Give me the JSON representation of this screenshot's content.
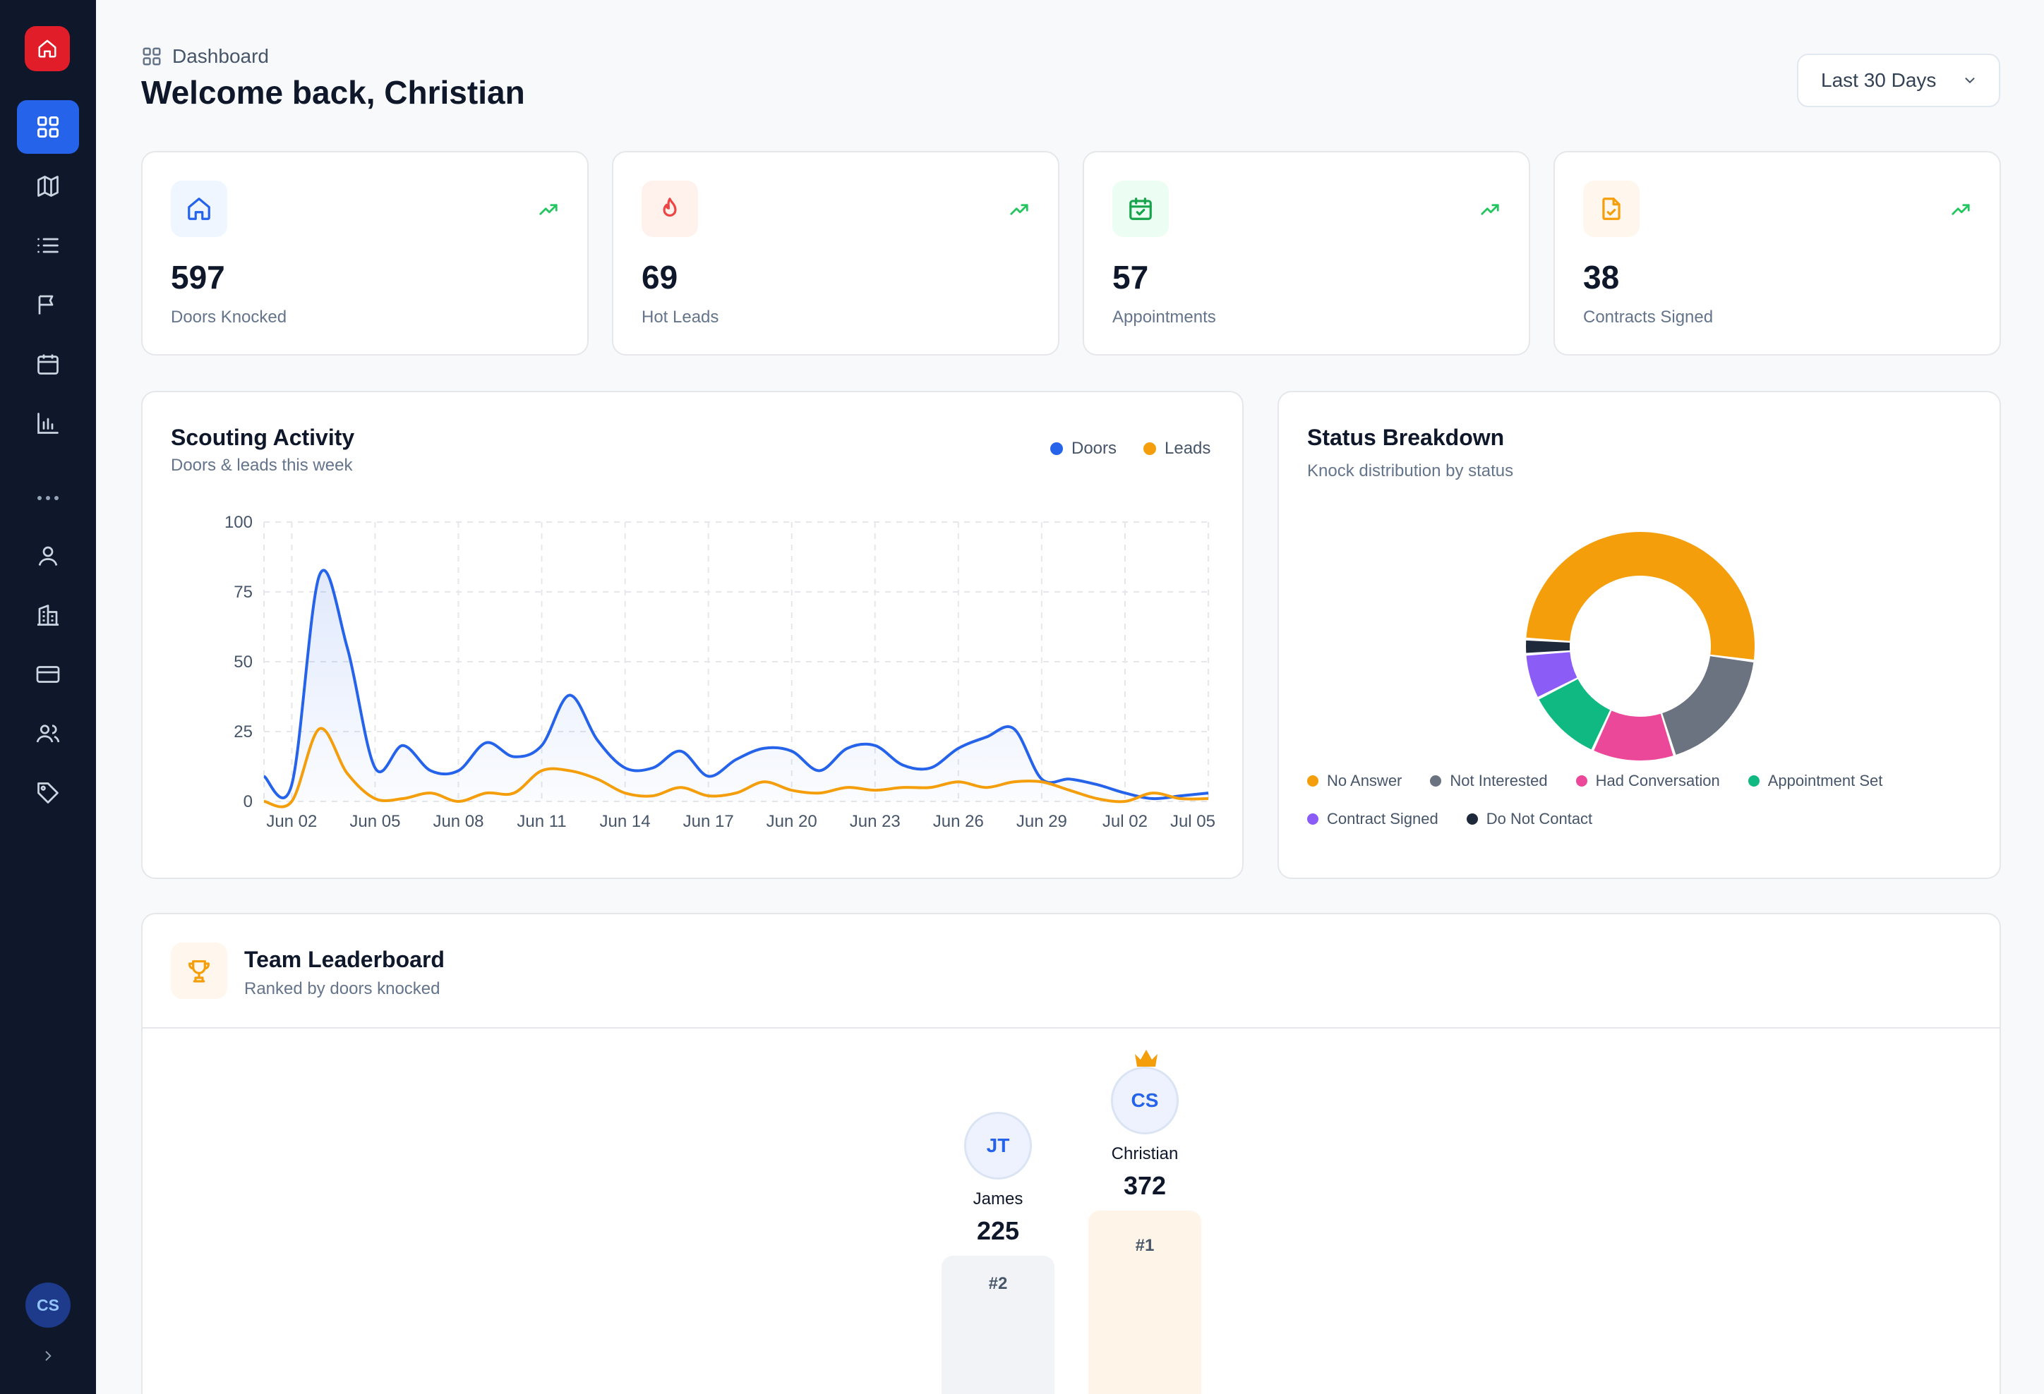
{
  "header": {
    "breadcrumb": "Dashboard",
    "title": "Welcome back, Christian",
    "range": "Last 30 Days"
  },
  "user": {
    "initials": "CS"
  },
  "stats": [
    {
      "value": "597",
      "label": "Doors Knocked",
      "icon": "home-icon",
      "tint": "#eff6ff",
      "color": "#2563eb"
    },
    {
      "value": "69",
      "label": "Hot Leads",
      "icon": "flame-icon",
      "tint": "#fff1eb",
      "color": "#ef4444"
    },
    {
      "value": "57",
      "label": "Appointments",
      "icon": "calendar-check-icon",
      "tint": "#ecfdf3",
      "color": "#16a34a"
    },
    {
      "value": "38",
      "label": "Contracts Signed",
      "icon": "file-check-icon",
      "tint": "#fff7ed",
      "color": "#f59e0b"
    }
  ],
  "activity": {
    "title": "Scouting Activity",
    "subtitle": "Doors & leads this week",
    "legend": [
      "Doors",
      "Leads"
    ]
  },
  "status": {
    "title": "Status Breakdown",
    "subtitle": "Knock distribution by status"
  },
  "leaderboard": {
    "title": "Team Leaderboard",
    "subtitle": "Ranked by doors knocked",
    "entries": [
      {
        "initials": "CS",
        "name": "Christian",
        "score": "372",
        "rank": "#1"
      },
      {
        "initials": "JT",
        "name": "James",
        "score": "225",
        "rank": "#2"
      }
    ]
  },
  "chart_data": [
    {
      "type": "area",
      "title": "Scouting Activity",
      "subtitle": "Doors & leads this week",
      "x": [
        "Jun 01",
        "Jun 02",
        "Jun 03",
        "Jun 04",
        "Jun 05",
        "Jun 06",
        "Jun 07",
        "Jun 08",
        "Jun 09",
        "Jun 10",
        "Jun 11",
        "Jun 12",
        "Jun 13",
        "Jun 14",
        "Jun 15",
        "Jun 16",
        "Jun 17",
        "Jun 18",
        "Jun 19",
        "Jun 20",
        "Jun 21",
        "Jun 22",
        "Jun 23",
        "Jun 24",
        "Jun 25",
        "Jun 26",
        "Jun 27",
        "Jun 28",
        "Jun 29",
        "Jun 30",
        "Jul 01",
        "Jul 02",
        "Jul 03",
        "Jul 04",
        "Jul 05"
      ],
      "tick_labels": [
        "Jun 02",
        "Jun 05",
        "Jun 08",
        "Jun 11",
        "Jun 14",
        "Jun 17",
        "Jun 20",
        "Jun 23",
        "Jun 26",
        "Jun 29",
        "Jul 02",
        "Jul 05"
      ],
      "series": [
        {
          "name": "Doors",
          "color": "#2563eb",
          "values": [
            9,
            6,
            81,
            55,
            12,
            20,
            11,
            11,
            21,
            16,
            20,
            38,
            22,
            12,
            12,
            18,
            9,
            15,
            19,
            18,
            11,
            19,
            20,
            13,
            12,
            19,
            23,
            26,
            8,
            8,
            6,
            3,
            1,
            2,
            3
          ]
        },
        {
          "name": "Leads",
          "color": "#f59e0b",
          "values": [
            0,
            0,
            26,
            10,
            1,
            1,
            3,
            0,
            3,
            3,
            11,
            11,
            8,
            3,
            2,
            5,
            2,
            3,
            7,
            4,
            3,
            5,
            4,
            5,
            5,
            7,
            5,
            7,
            7,
            4,
            1,
            0,
            3,
            1,
            1
          ]
        }
      ],
      "ylim": [
        0,
        100
      ],
      "yticks": [
        0,
        25,
        50,
        75,
        100
      ],
      "grid": true,
      "legend": "top-right"
    },
    {
      "type": "pie",
      "title": "Status Breakdown",
      "subtitle": "Knock distribution by status",
      "donut": true,
      "categories": [
        "No Answer",
        "Not Interested",
        "Had Conversation",
        "Appointment Set",
        "Contract Signed",
        "Do Not Contact"
      ],
      "values": [
        48,
        17,
        11,
        10,
        6,
        2
      ],
      "colors": [
        "#f59e0b",
        "#6b7280",
        "#ec4899",
        "#10b981",
        "#8b5cf6",
        "#1e293b"
      ],
      "legend": "bottom"
    }
  ]
}
